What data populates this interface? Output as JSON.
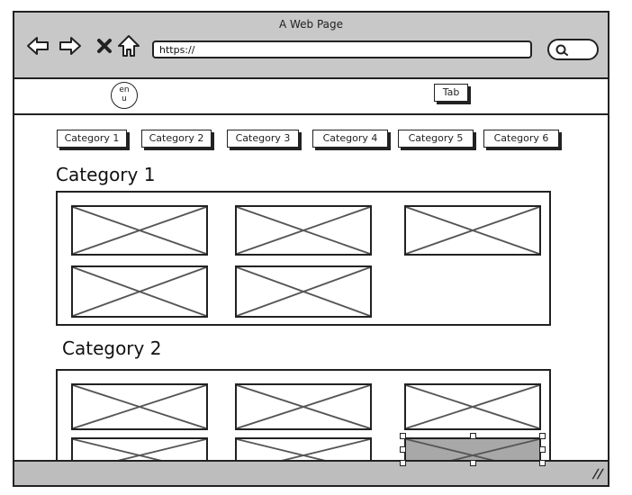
{
  "window": {
    "title": "A Web Page"
  },
  "toolbar": {
    "back_icon": "arrow-left-icon",
    "forward_icon": "arrow-right-icon",
    "close_icon": "x-icon",
    "home_icon": "home-icon",
    "url": "https://",
    "search_icon": "search-icon"
  },
  "header": {
    "lang_top": "en",
    "lang_bottom": "u",
    "tab_label": "Tab"
  },
  "categories": [
    "Category 1",
    "Category 2",
    "Category 3",
    "Category 4",
    "Category 5",
    "Category 6"
  ],
  "sections": [
    {
      "title": "Category 1",
      "images": 5
    },
    {
      "title": "Category 2",
      "images": 6
    }
  ]
}
